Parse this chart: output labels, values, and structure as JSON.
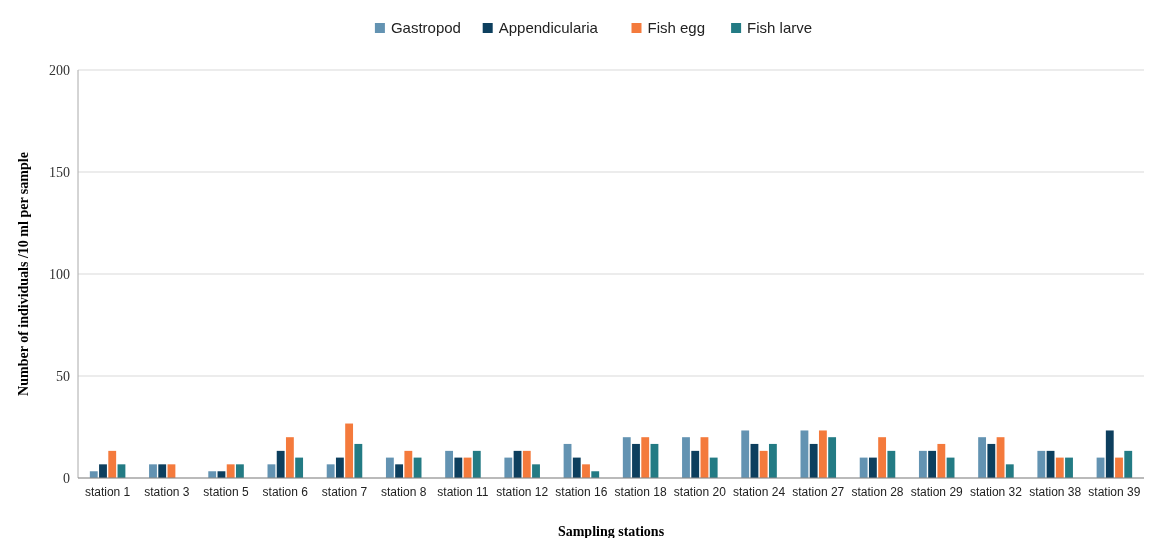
{
  "chart_data": {
    "type": "bar",
    "xlabel": "Sampling stations",
    "ylabel": "Number of individuals /10 ml per sample",
    "categories": [
      "station 1",
      "station 3",
      "station 5",
      "station 6",
      "station 7",
      "station 8",
      "station 11",
      "station 12",
      "station 16",
      "station 18",
      "station 20",
      "station 24",
      "station 27",
      "station 28",
      "station 29",
      "station 32",
      "station 38",
      "station 39"
    ],
    "series": [
      {
        "name": "Gastropod",
        "color": "#6393b2",
        "values": [
          3.3,
          6.7,
          3.3,
          6.7,
          6.7,
          10,
          13.3,
          10,
          16.7,
          20,
          20,
          23.3,
          23.3,
          10,
          13.3,
          20,
          13.3,
          10
        ]
      },
      {
        "name": "Appendicularia",
        "color": "#0d3f5e",
        "values": [
          6.7,
          6.7,
          3.3,
          13.3,
          10,
          6.7,
          10,
          13.3,
          10,
          16.7,
          13.3,
          16.7,
          16.7,
          10,
          13.3,
          16.7,
          13.3,
          23.3
        ]
      },
      {
        "name": "Fish egg",
        "color": "#f47a3c",
        "values": [
          13.3,
          6.7,
          6.7,
          20,
          26.7,
          13.3,
          10,
          13.3,
          6.7,
          20,
          20,
          13.3,
          23.3,
          20,
          16.7,
          20,
          10,
          10
        ]
      },
      {
        "name": "Fish larve",
        "color": "#237b84",
        "values": [
          6.7,
          0,
          6.7,
          10,
          16.7,
          10,
          13.3,
          6.7,
          3.3,
          16.7,
          10,
          16.7,
          20,
          13.3,
          10,
          6.7,
          10,
          13.3
        ]
      }
    ],
    "ylim": [
      0,
      200
    ],
    "yticks": [
      0,
      50,
      100,
      150,
      200
    ],
    "grid": "y",
    "legend": "top"
  }
}
